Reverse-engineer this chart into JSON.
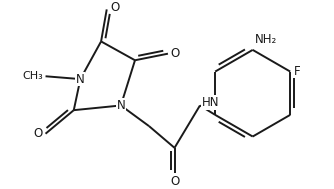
{
  "background_color": "#ffffff",
  "line_color": "#1a1a1a",
  "line_width": 1.4,
  "font_size": 8.5,
  "figsize": [
    3.34,
    1.89
  ],
  "dpi": 100,
  "xlim": [
    0,
    334
  ],
  "ylim": [
    0,
    189
  ]
}
